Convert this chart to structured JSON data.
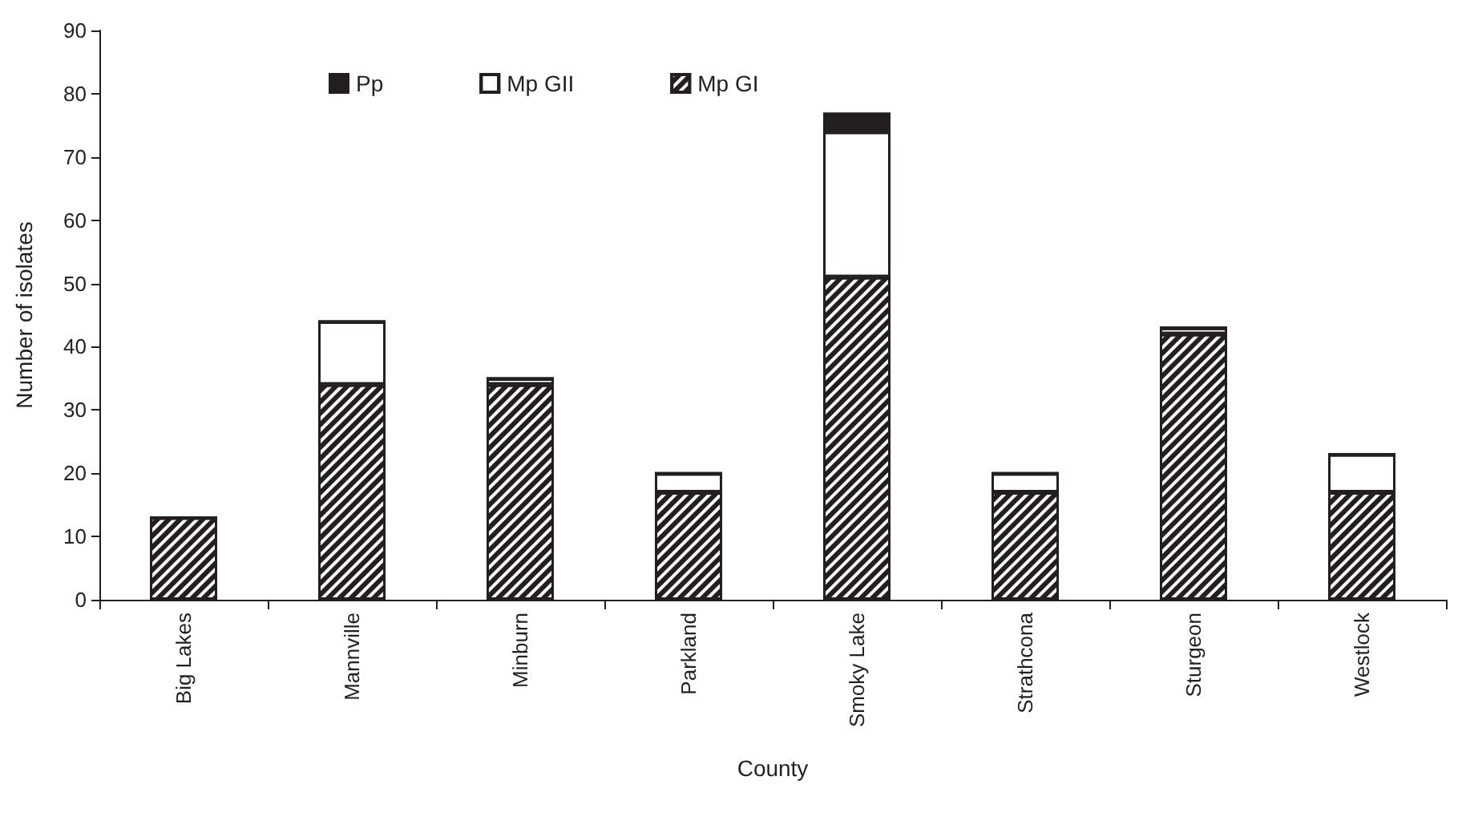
{
  "chart_data": {
    "type": "bar",
    "stacked": true,
    "xlabel": "County",
    "ylabel": "Number of isolates",
    "categories": [
      "Big Lakes",
      "Mannville",
      "Minburn",
      "Parkland",
      "Smoky Lake",
      "Strathcona",
      "Sturgeon",
      "Westlock"
    ],
    "series": [
      {
        "name": "Mp GI",
        "color": "#231f20",
        "values": [
          13,
          34,
          34,
          17,
          51,
          17,
          42,
          17
        ]
      },
      {
        "name": "Mp GII",
        "color": "#ffffff",
        "values": [
          0,
          10,
          1,
          3,
          23,
          3,
          1,
          6
        ]
      },
      {
        "name": "Pp",
        "color": "#231f20",
        "values": [
          0,
          0,
          0,
          0,
          3,
          0,
          0,
          0
        ]
      }
    ],
    "ylim": [
      0,
      90
    ],
    "yticks": [
      0,
      10,
      20,
      30,
      40,
      50,
      60,
      70,
      80,
      90
    ],
    "grid": false,
    "legend": "top"
  }
}
